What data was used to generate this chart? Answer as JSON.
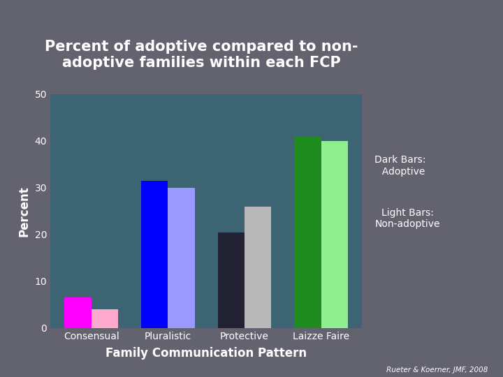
{
  "title": "Percent of adoptive compared to non-\nadoptive families within each FCP",
  "xlabel": "Family Communication Pattern",
  "ylabel": "Percent",
  "categories": [
    "Consensual",
    "Pluralistic",
    "Protective",
    "Laizze Faire"
  ],
  "adoptive_values": [
    6.5,
    31.5,
    20.5,
    41.0
  ],
  "non_adoptive_values": [
    4.0,
    30.0,
    26.0,
    40.0
  ],
  "adoptive_colors": [
    "#ff00ff",
    "#0000ff",
    "#222233",
    "#1f8b1f"
  ],
  "non_adoptive_colors": [
    "#ffaacc",
    "#9999ff",
    "#b8b8b8",
    "#90ee90"
  ],
  "ylim": [
    0,
    50
  ],
  "yticks": [
    0,
    10,
    20,
    30,
    40,
    50
  ],
  "background_outer": "#636370",
  "background_plot": "#3d6472",
  "text_color": "#ffffff",
  "title_fontsize": 15,
  "axis_label_fontsize": 12,
  "tick_fontsize": 10,
  "annotation_fontsize": 10,
  "citation": "Rueter & Koerner, JMF, 2008"
}
